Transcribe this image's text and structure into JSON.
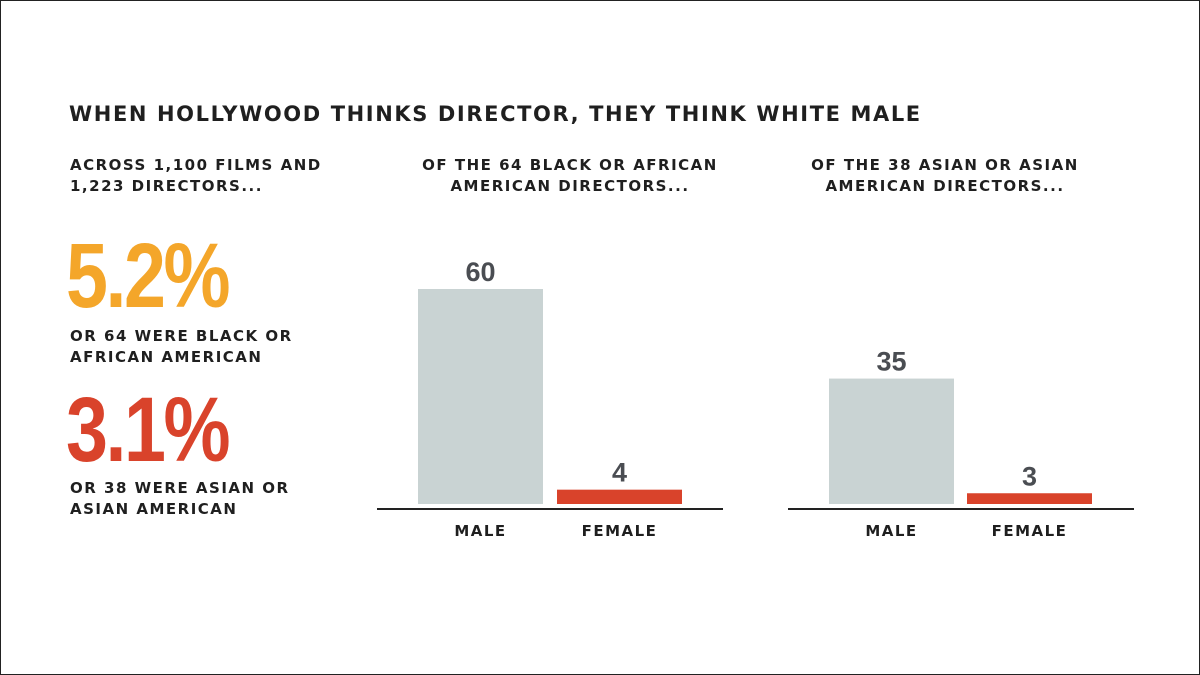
{
  "title": "WHEN HOLLYWOOD THINKS DIRECTOR, THEY THINK WHITE MALE",
  "intro": "ACROSS 1,100 FILMS AND 1,223 DIRECTORS...",
  "stats": [
    {
      "value": "5.2%",
      "caption": "OR 64 WERE BLACK OR AFRICAN AMERICAN"
    },
    {
      "value": "3.1%",
      "caption": "OR 38 WERE ASIAN OR ASIAN AMERICAN"
    }
  ],
  "colors": {
    "accent_orange": "#f4a62a",
    "accent_red": "#d9432b",
    "male_bar": "#c9d3d3",
    "female_bar": "#d9432b",
    "value_text": "#4a4d52",
    "axis": "#222222"
  },
  "chart_data": [
    {
      "type": "bar",
      "title": "OF THE 64 BLACK OR AFRICAN AMERICAN DIRECTORS...",
      "categories": [
        "MALE",
        "FEMALE"
      ],
      "values": [
        60,
        4
      ],
      "xlabel": "",
      "ylabel": "",
      "ylim": [
        0,
        60
      ],
      "grid": false
    },
    {
      "type": "bar",
      "title": "OF THE 38 ASIAN OR ASIAN AMERICAN DIRECTORS...",
      "categories": [
        "MALE",
        "FEMALE"
      ],
      "values": [
        35,
        3
      ],
      "xlabel": "",
      "ylabel": "",
      "ylim": [
        0,
        60
      ],
      "grid": false
    }
  ]
}
